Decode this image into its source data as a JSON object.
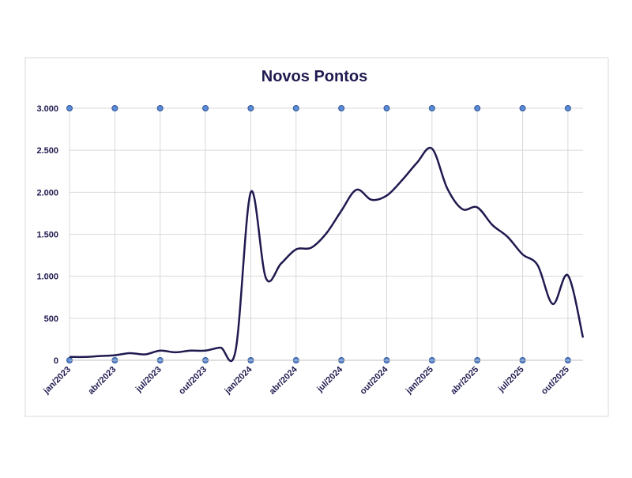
{
  "chart_data": {
    "type": "line",
    "title": "Novos Pontos",
    "categories": [
      "jan/2023",
      null,
      null,
      "abr/2023",
      null,
      null,
      "jul/2023",
      null,
      null,
      "out/2023",
      null,
      null,
      "jan/2024",
      null,
      null,
      "abr/2024",
      null,
      null,
      "jul/2024",
      null,
      null,
      "out/2024",
      null,
      null,
      "jan/2025",
      null,
      null,
      "abr/2025",
      null,
      null,
      "jul/2025",
      null,
      null,
      "out/2025",
      null
    ],
    "series": [
      {
        "name": "Novos Pontos",
        "color": "#1f1a4f",
        "values": [
          40,
          40,
          50,
          60,
          85,
          70,
          115,
          95,
          115,
          115,
          150,
          120,
          2000,
          980,
          1150,
          1320,
          1340,
          1510,
          1780,
          2030,
          1910,
          1960,
          2140,
          2350,
          2520,
          2050,
          1800,
          1820,
          1610,
          1470,
          1260,
          1130,
          670,
          1010,
          270
        ]
      }
    ],
    "ylim": [
      0,
      3000
    ],
    "yticks": [
      0,
      500,
      {
        "value": 1000,
        "label": "1.000"
      },
      {
        "value": 1500,
        "label": "1.500"
      },
      {
        "value": 2000,
        "label": "2.000"
      },
      {
        "value": 2500,
        "label": "2.500"
      },
      {
        "value": 3000,
        "label": "3.000"
      }
    ],
    "grid": true
  }
}
